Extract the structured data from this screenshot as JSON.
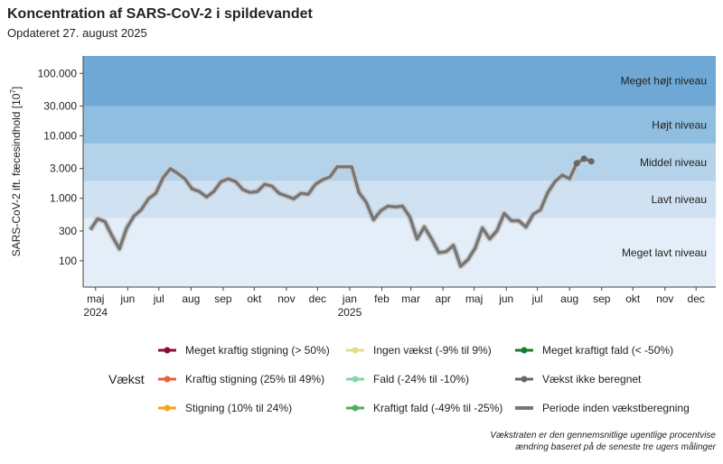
{
  "chart_data": {
    "type": "line",
    "title": "Koncentration af SARS-CoV-2 i spildevandet",
    "subtitle": "Opdateret 27. august 2025",
    "y_label": [
      "SARS-CoV-2 ift. fæcesindhold [10",
      "7",
      "]"
    ],
    "log_y": true,
    "ylim": [
      38,
      190000
    ],
    "yticks": [
      100,
      300,
      {
        "value": 1000,
        "label": "1.000"
      },
      {
        "value": 3000,
        "label": "3.000"
      },
      {
        "value": 10000,
        "label": "10.000"
      },
      {
        "value": 30000,
        "label": "30.000"
      },
      {
        "value": 100000,
        "label": "100.000"
      }
    ],
    "xlim": [
      "2024-04-19",
      "2025-12-20"
    ],
    "xticks": [
      {
        "value": "2024-05",
        "label": "maj"
      },
      {
        "value": "2024-06",
        "label": "jun"
      },
      {
        "value": "2024-07",
        "label": "jul"
      },
      {
        "value": "2024-08",
        "label": "aug"
      },
      {
        "value": "2024-09",
        "label": "sep"
      },
      {
        "value": "2024-10",
        "label": "okt"
      },
      {
        "value": "2024-11",
        "label": "nov"
      },
      {
        "value": "2024-12",
        "label": "dec"
      },
      {
        "value": "2025-01",
        "label": "jan"
      },
      {
        "value": "2025-02",
        "label": "feb"
      },
      {
        "value": "2025-03",
        "label": "mar"
      },
      {
        "value": "2025-04",
        "label": "apr"
      },
      {
        "value": "2025-05",
        "label": "maj"
      },
      {
        "value": "2025-06",
        "label": "jun"
      },
      {
        "value": "2025-07",
        "label": "jul"
      },
      {
        "value": "2025-08",
        "label": "aug"
      },
      {
        "value": "2025-09",
        "label": "sep"
      },
      {
        "value": "2025-10",
        "label": "okt"
      },
      {
        "value": "2025-11",
        "label": "nov"
      },
      {
        "value": "2025-12",
        "label": "dec"
      }
    ],
    "year_labels": [
      {
        "value": "2024-05",
        "label": "2024"
      },
      {
        "value": "2025-01",
        "label": "2025"
      }
    ],
    "bands": [
      {
        "from": 30000,
        "to": 190000,
        "label": "Meget højt niveau",
        "color": "#6fa8d4"
      },
      {
        "from": 7500,
        "to": 30000,
        "label": "Højt niveau",
        "color": "#90bee0"
      },
      {
        "from": 1900,
        "to": 7500,
        "label": "Middel niveau",
        "color": "#b4d3ea"
      },
      {
        "from": 480,
        "to": 1900,
        "label": "Lavt niveau",
        "color": "#d0e2f2"
      },
      {
        "from": 38,
        "to": 480,
        "label": "Meget lavt niveau",
        "color": "#e4eef8"
      }
    ],
    "x": [
      "2024-04-26",
      "2024-05-03",
      "2024-05-10",
      "2024-05-17",
      "2024-05-24",
      "2024-05-31",
      "2024-06-07",
      "2024-06-14",
      "2024-06-21",
      "2024-06-28",
      "2024-07-05",
      "2024-07-12",
      "2024-07-19",
      "2024-07-26",
      "2024-08-02",
      "2024-08-09",
      "2024-08-16",
      "2024-08-23",
      "2024-08-30",
      "2024-09-06",
      "2024-09-13",
      "2024-09-20",
      "2024-09-27",
      "2024-10-04",
      "2024-10-11",
      "2024-10-18",
      "2024-10-25",
      "2024-11-01",
      "2024-11-08",
      "2024-11-15",
      "2024-11-22",
      "2024-11-29",
      "2024-12-06",
      "2024-12-13",
      "2024-12-20",
      "2024-12-27",
      "2025-01-03",
      "2025-01-10",
      "2025-01-17",
      "2025-01-24",
      "2025-01-31",
      "2025-02-07",
      "2025-02-14",
      "2025-02-21",
      "2025-02-28",
      "2025-03-07",
      "2025-03-14",
      "2025-03-21",
      "2025-03-28",
      "2025-04-04",
      "2025-04-11",
      "2025-04-18",
      "2025-04-25",
      "2025-05-02",
      "2025-05-09",
      "2025-05-16",
      "2025-05-23",
      "2025-05-30",
      "2025-06-06",
      "2025-06-13",
      "2025-06-20",
      "2025-06-27",
      "2025-07-04",
      "2025-07-11",
      "2025-07-18",
      "2025-07-25",
      "2025-08-01",
      "2025-08-08",
      "2025-08-15",
      "2025-08-22"
    ],
    "series": [
      {
        "color": "#777777",
        "style": "line",
        "values": [
          313,
          470,
          424,
          248,
          155,
          335,
          519,
          657,
          983,
          1203,
          2130,
          2980,
          2520,
          2060,
          1420,
          1290,
          1050,
          1290,
          1860,
          2060,
          1860,
          1380,
          1240,
          1290,
          1680,
          1570,
          1200,
          1090,
          980,
          1200,
          1160,
          1680,
          1990,
          2200,
          3190,
          3190,
          3190,
          1240,
          860,
          454,
          635,
          751,
          727,
          751,
          502,
          224,
          347,
          224,
          135,
          140,
          177,
          82,
          104,
          160,
          335,
          224,
          303,
          574,
          439,
          439,
          347,
          555,
          657,
          1240,
          1860,
          2360,
          2060,
          3650,
          4320,
          3900
        ]
      },
      {
        "color": "#666666",
        "style": "dot",
        "values": [
          null,
          null,
          null,
          null,
          null,
          null,
          null,
          null,
          null,
          null,
          null,
          null,
          null,
          null,
          null,
          null,
          null,
          null,
          null,
          null,
          null,
          null,
          null,
          null,
          null,
          null,
          null,
          null,
          null,
          null,
          null,
          null,
          null,
          null,
          null,
          null,
          null,
          null,
          null,
          null,
          null,
          null,
          null,
          null,
          null,
          null,
          null,
          null,
          null,
          null,
          null,
          null,
          null,
          null,
          null,
          null,
          null,
          null,
          null,
          null,
          null,
          null,
          null,
          null,
          null,
          null,
          null,
          3650,
          4320,
          3900
        ]
      }
    ],
    "legend_title": "Vækst",
    "legend": [
      {
        "name": "Meget kraftig stigning (> 50%)",
        "color": "#8b0a3e",
        "style": "dotline"
      },
      {
        "name": "Kraftig stigning (25% til 49%)",
        "color": "#e8603c",
        "style": "dotline"
      },
      {
        "name": "Stigning (10% til 24%)",
        "color": "#f5a41a",
        "style": "dotline"
      },
      {
        "name": "Ingen vækst (-9% til 9%)",
        "color": "#e8dc8c",
        "style": "dotline"
      },
      {
        "name": "Fald (-24% til -10%)",
        "color": "#80d6a8",
        "style": "dotline"
      },
      {
        "name": "Kraftigt fald (-49% til -25%)",
        "color": "#4caf64",
        "style": "dotline"
      },
      {
        "name": "Meget kraftigt fald (< -50%)",
        "color": "#1e7a30",
        "style": "dotline"
      },
      {
        "name": "Vækst ikke beregnet",
        "color": "#666666",
        "style": "dotline"
      },
      {
        "name": "Periode inden vækstberegning",
        "color": "#777777",
        "style": "line"
      }
    ],
    "footnote": [
      "Vækstraten er den gennemsnitlige ugentlige procentvise",
      "ændring baseret på de seneste tre ugers målinger"
    ]
  }
}
